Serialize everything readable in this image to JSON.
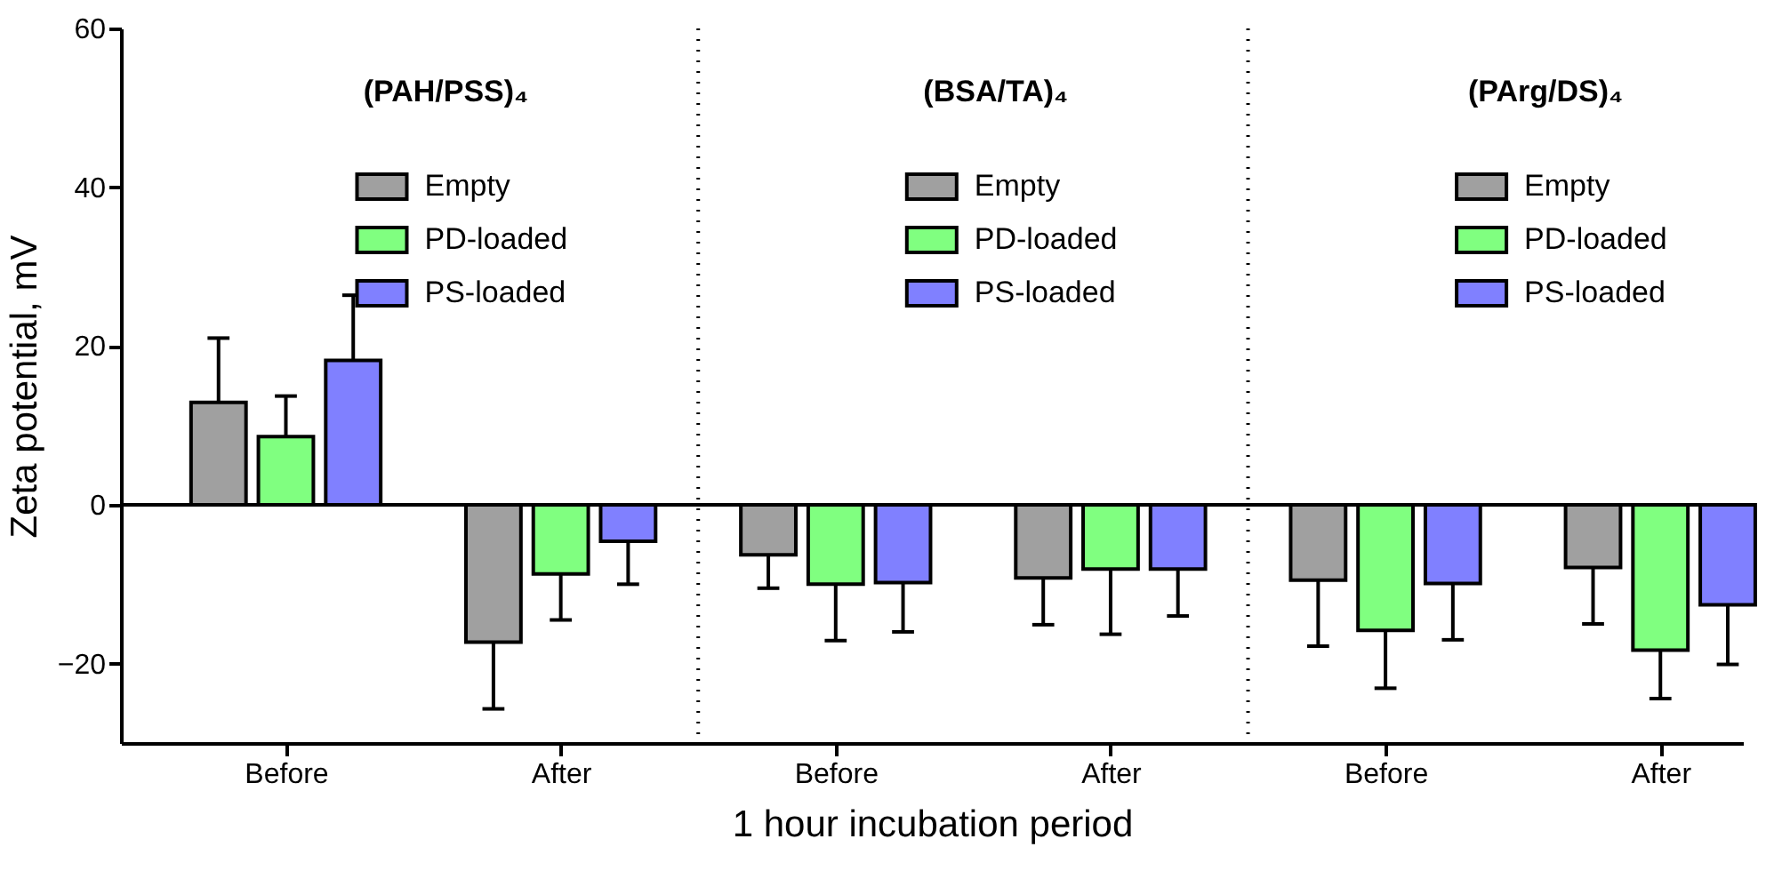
{
  "chart_data": {
    "type": "bar",
    "xlabel": "1 hour incubation period",
    "ylabel": "Zeta potential, mV",
    "categories": [
      "Before",
      "After",
      "Before",
      "After",
      "Before",
      "After"
    ],
    "series": [
      {
        "name": "Empty",
        "color": "#a0a0a0",
        "values": [
          12.9,
          -17.3,
          null,
          null,
          null,
          null
        ],
        "errors": [
          [
            12.9,
            21.0
          ],
          [
            -25.7,
            -17.3
          ],
          null,
          null,
          null,
          null
        ]
      },
      {
        "name": "PD-loaded",
        "color": "#80ff80",
        "values": [
          8.6,
          -8.7,
          null,
          null,
          null,
          null
        ],
        "errors": [
          [
            8.6,
            13.7
          ],
          [
            -14.5,
            -8.7
          ],
          null,
          null,
          null,
          null
        ]
      },
      {
        "name": "PS-loaded",
        "color": "#8080ff",
        "values": [
          18.2,
          -4.6,
          null,
          null,
          null,
          null
        ],
        "errors": [
          [
            18.2,
            26.4
          ],
          [
            -10.0,
            -4.6
          ],
          null,
          null,
          null,
          null
        ]
      },
      {
        "name": "Empty",
        "color": "#a0a0a0",
        "values": [
          null,
          null,
          -6.3,
          -9.2,
          null,
          null
        ],
        "errors": [
          null,
          null,
          [
            -10.5,
            -6.3
          ],
          [
            -15.1,
            -9.2
          ],
          null,
          null
        ]
      },
      {
        "name": "PD-loaded",
        "color": "#80ff80",
        "values": [
          null,
          null,
          -10.0,
          -8.1,
          null,
          null
        ],
        "errors": [
          null,
          null,
          [
            -17.1,
            -10.0
          ],
          [
            -16.3,
            -8.1
          ],
          null,
          null
        ]
      },
      {
        "name": "PS-loaded",
        "color": "#8080ff",
        "values": [
          null,
          null,
          -9.8,
          -8.1,
          null,
          null
        ],
        "errors": [
          null,
          null,
          [
            -16.0,
            -9.8
          ],
          [
            -14.0,
            -8.1
          ],
          null,
          null
        ]
      },
      {
        "name": "Empty",
        "color": "#a0a0a0",
        "values": [
          null,
          null,
          null,
          null,
          -9.5,
          -7.9
        ],
        "errors": [
          null,
          null,
          null,
          null,
          [
            -17.8,
            -9.5
          ],
          [
            -15.0,
            -7.9
          ]
        ]
      },
      {
        "name": "PD-loaded",
        "color": "#80ff80",
        "values": [
          null,
          null,
          null,
          null,
          -15.8,
          -18.3
        ],
        "errors": [
          null,
          null,
          null,
          null,
          [
            -23.1,
            -15.8
          ],
          [
            -24.4,
            -18.3
          ]
        ]
      },
      {
        "name": "PS-loaded",
        "color": "#8080ff",
        "values": [
          null,
          null,
          null,
          null,
          -9.9,
          -12.6
        ],
        "errors": [
          null,
          null,
          null,
          null,
          [
            -17.0,
            -9.9
          ],
          [
            -20.1,
            -12.6
          ]
        ]
      }
    ],
    "annotations": [
      "(PAH/PSS)₄",
      "(BSA/TA)₄",
      "(PArg/DS)₄"
    ],
    "ref_lines": [
      {
        "axis": "y",
        "value": 0,
        "line_style": "solid",
        "color": "#000000"
      }
    ],
    "ylim": [
      -30,
      60
    ],
    "yticks": [
      -20,
      0,
      20,
      40,
      60
    ],
    "grid": false,
    "legend": "top"
  }
}
